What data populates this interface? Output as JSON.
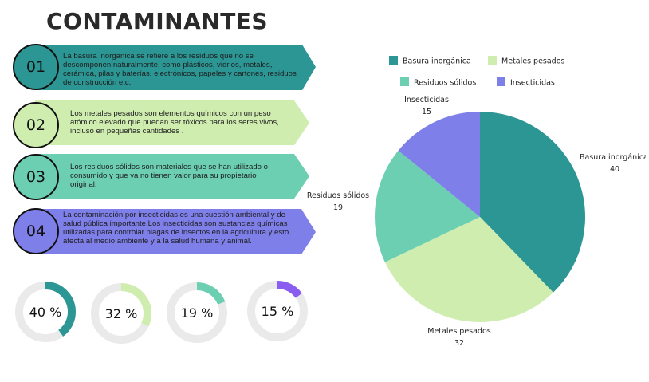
{
  "title": "CONTAMINANTES",
  "items": [
    {
      "number": "01",
      "color": "#2c9694",
      "text": "La basura inorganica se refiere a los residuos que no se descomponen naturalmente, como plásticos, vidrios, metales, cerámica, pilas y baterías, electrónicos, papeles y cartones, residuos de construcción etc."
    },
    {
      "number": "02",
      "color": "#d0edb0",
      "text": "Los metales pesados son elementos químicos con un peso atómico elevado que puedan ser tóxicos para los seres vivos, incluso en pequeñas cantidades ."
    },
    {
      "number": "03",
      "color": "#6ccfb1",
      "text": "Los residuos sólidos son materiales que se han utilizado o consumido y que ya no tienen valor para su propietario original."
    },
    {
      "number": "04",
      "color": "#7e7fe8",
      "text": "La contaminación por insecticidas es una cuestión ambiental y de salud pública importante.Los insecticidas son sustancias químicas utilizadas para controlar plagas de insectos en la agricultura y esto afecta al medio ambiente y a la salud humana y animal."
    }
  ],
  "donuts": [
    {
      "label": "40 %",
      "fraction": 0.4,
      "color": "#2c9694"
    },
    {
      "label": "32 %",
      "fraction": 0.32,
      "color": "#d0edb0"
    },
    {
      "label": "19 %",
      "fraction": 0.19,
      "color": "#6ccfb1"
    },
    {
      "label": "15 %",
      "fraction": 0.15,
      "color": "#8a5cf0"
    }
  ],
  "chart_data": {
    "type": "pie",
    "title": "",
    "legend_position": "top",
    "categories": [
      "Basura inorgánica",
      "Metales pesados",
      "Residuos sólidos",
      "Insecticidas"
    ],
    "values": [
      40,
      32,
      19,
      15
    ],
    "colors": [
      "#2c9694",
      "#d0edb0",
      "#6ccfb1",
      "#7e7fe8"
    ]
  }
}
